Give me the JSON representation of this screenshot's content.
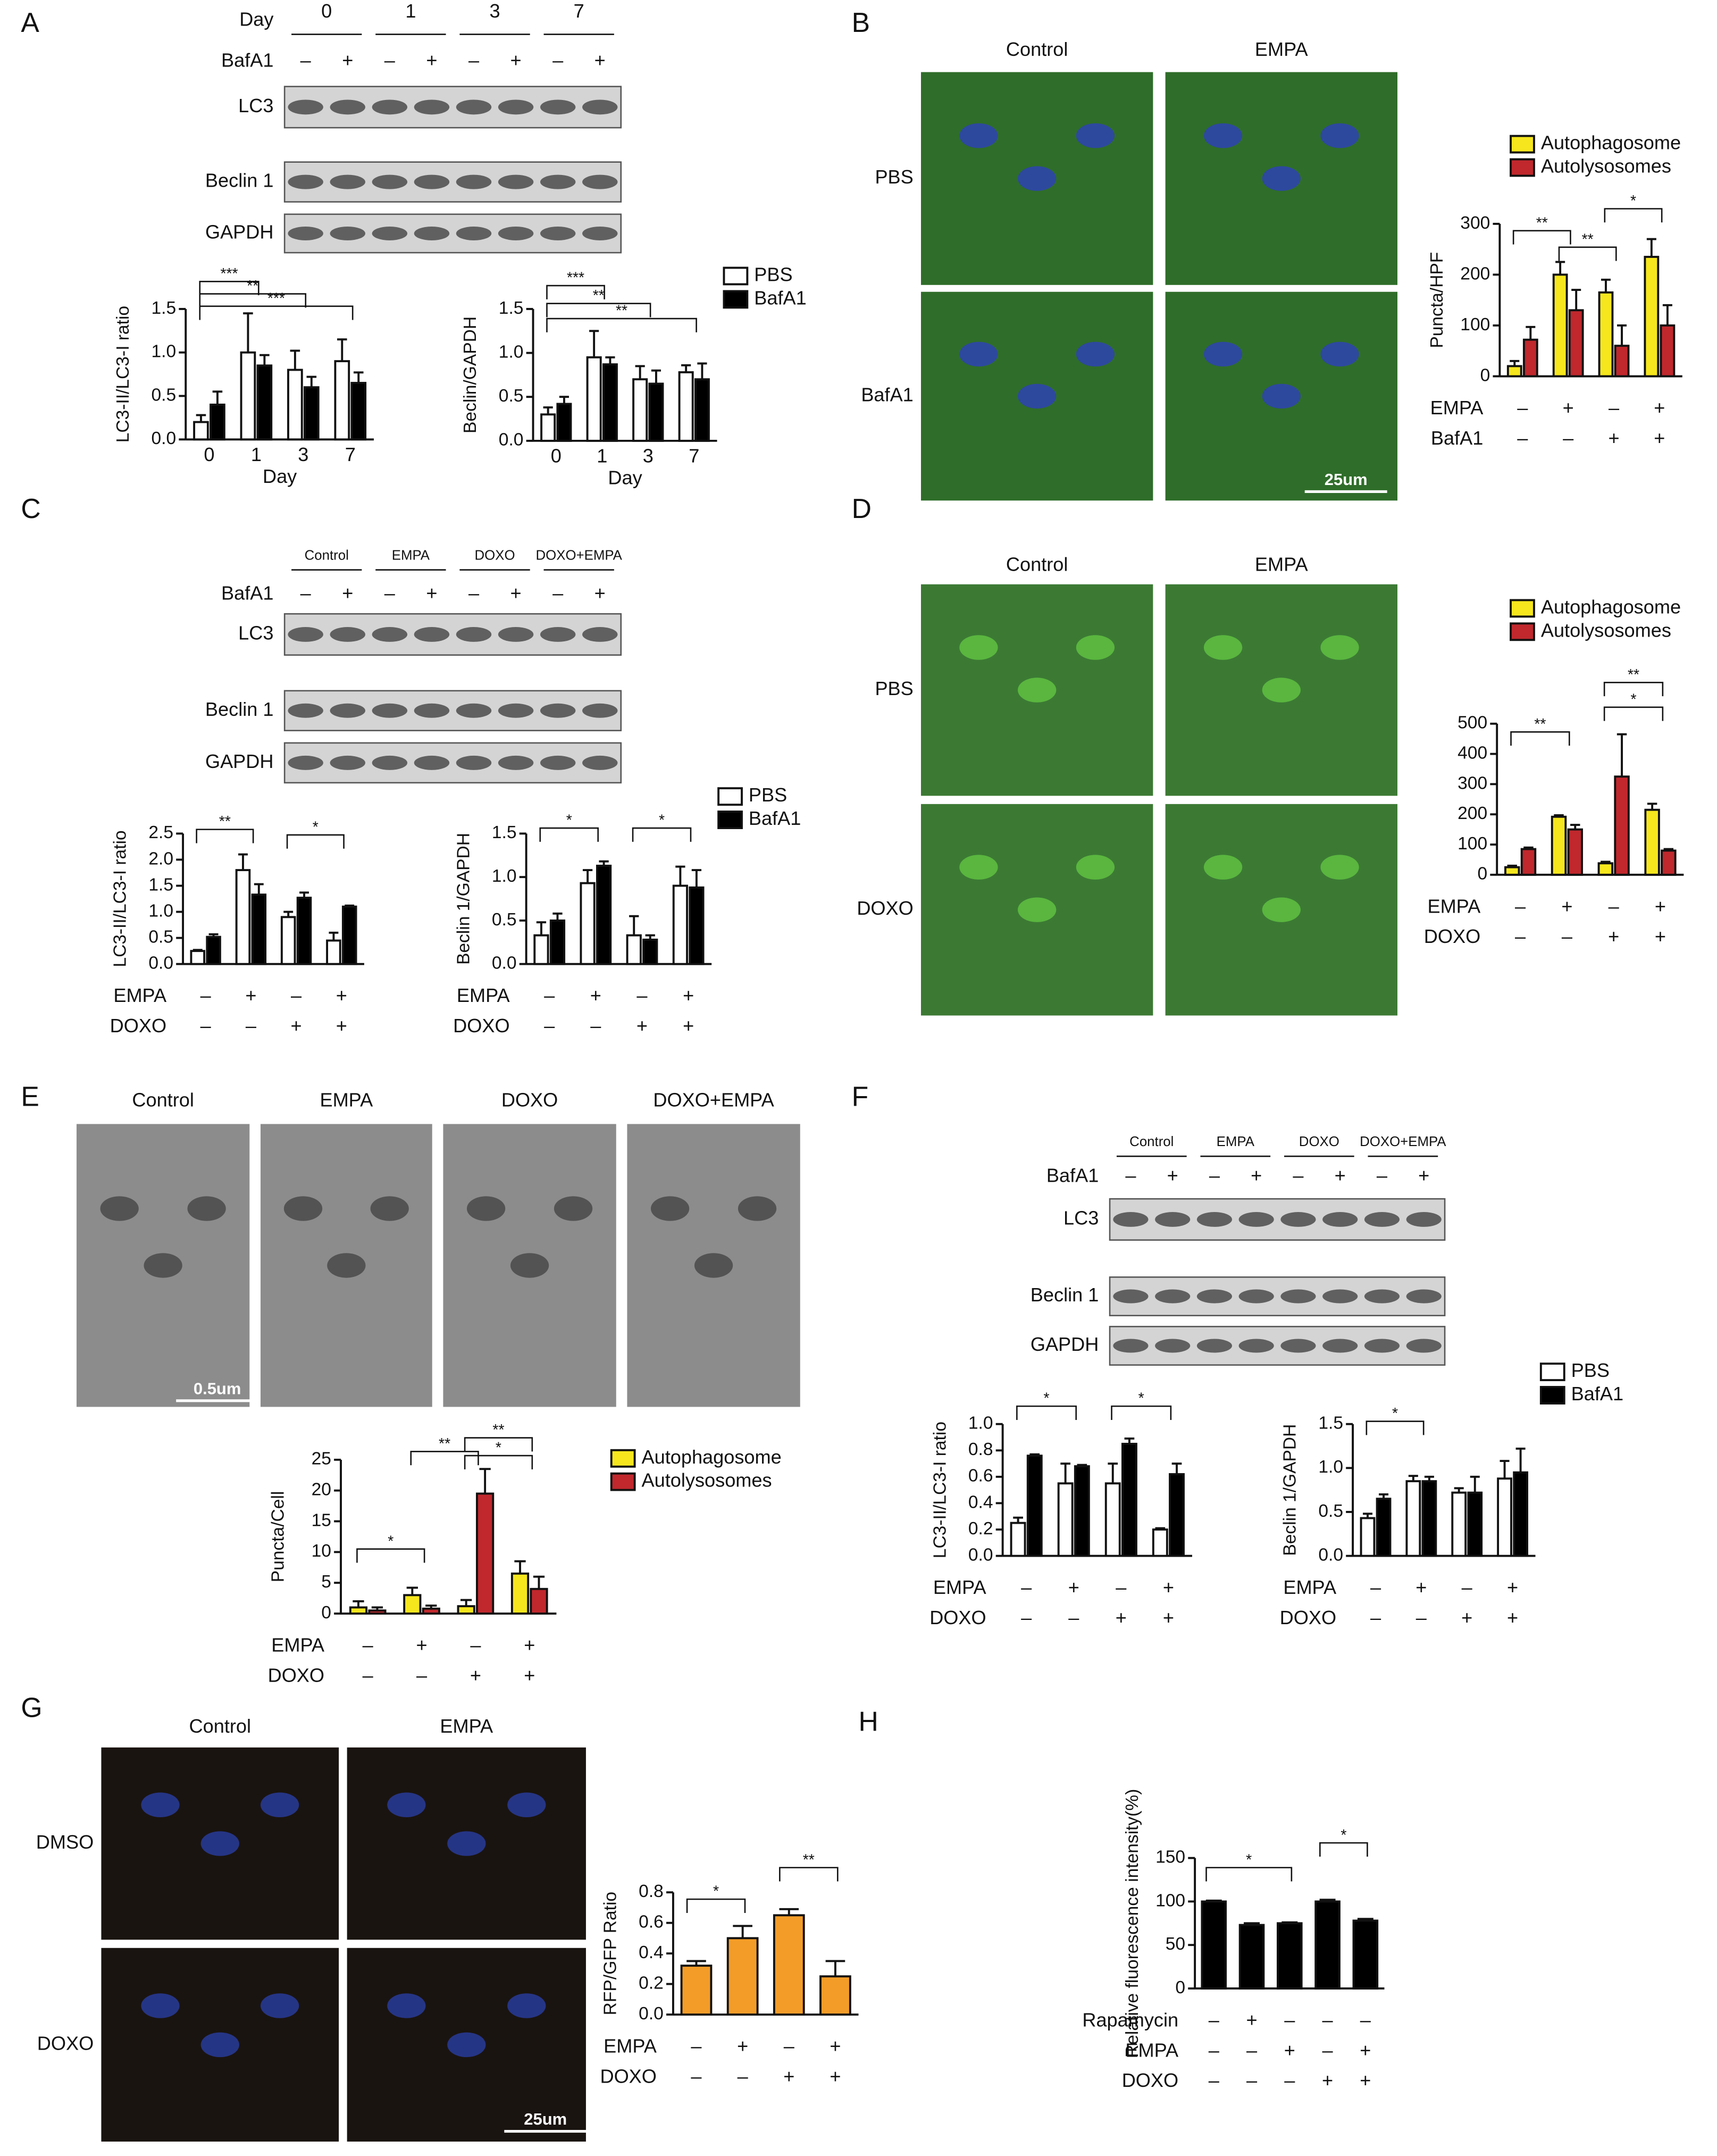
{
  "panel_labels": [
    "A",
    "B",
    "C",
    "D",
    "E",
    "F",
    "G",
    "H"
  ],
  "blot_A": {
    "day_label": "Day",
    "days": [
      "0",
      "1",
      "3",
      "7"
    ],
    "bafa1_label": "BafA1",
    "signs": [
      "–",
      "+",
      "–",
      "+",
      "–",
      "+",
      "–",
      "+"
    ],
    "rows": [
      "LC3",
      "Beclin 1",
      "GAPDH"
    ]
  },
  "blot_C": {
    "groups": [
      "Control",
      "EMPA",
      "DOXO",
      "DOXO+EMPA"
    ],
    "bafa1_label": "BafA1",
    "signs": [
      "–",
      "+",
      "–",
      "+",
      "–",
      "+",
      "–",
      "+"
    ],
    "rows": [
      "LC3",
      "Beclin 1",
      "GAPDH"
    ]
  },
  "blot_F": {
    "groups": [
      "Control",
      "EMPA",
      "DOXO",
      "DOXO+EMPA"
    ],
    "bafa1_label": "BafA1",
    "signs": [
      "–",
      "+",
      "–",
      "+",
      "–",
      "+",
      "–",
      "+"
    ],
    "rows": [
      "LC3",
      "Beclin 1",
      "GAPDH"
    ]
  },
  "images_B": {
    "columns": [
      "Control",
      "EMPA"
    ],
    "rows": [
      "PBS",
      "BafA1"
    ],
    "scale_bar": "25um"
  },
  "images_D": {
    "columns": [
      "Control",
      "EMPA"
    ],
    "rows": [
      "PBS",
      "DOXO"
    ]
  },
  "images_E": {
    "columns": [
      "Control",
      "EMPA",
      "DOXO",
      "DOXO+EMPA"
    ],
    "scale_bar": "0.5um"
  },
  "images_G": {
    "columns": [
      "Control",
      "EMPA"
    ],
    "rows": [
      "DMSO",
      "DOXO"
    ],
    "scale_bar": "25um"
  },
  "chart_data": [
    {
      "type": "bar",
      "y_label": "LC3-II/LC3-I ratio",
      "x_label": "Day",
      "categories": [
        "0",
        "1",
        "3",
        "7"
      ],
      "series": [
        {
          "name": "PBS",
          "color": "#ffffff",
          "values": [
            0.2,
            1.0,
            0.8,
            0.9
          ],
          "errors": [
            0.08,
            0.45,
            0.22,
            0.25
          ]
        },
        {
          "name": "BafA1",
          "color": "#000000",
          "values": [
            0.4,
            0.85,
            0.6,
            0.65
          ],
          "errors": [
            0.15,
            0.12,
            0.12,
            0.12
          ]
        }
      ],
      "ylim": [
        0,
        1.5
      ],
      "yticks": [
        {
          "value": 0,
          "label": "0.0"
        },
        0.5,
        {
          "value": 1,
          "label": "1.0"
        },
        1.5
      ],
      "annotations": [
        "***",
        "**",
        "***"
      ]
    },
    {
      "type": "bar",
      "y_label": "Beclin/GAPDH",
      "x_label": "Day",
      "categories": [
        "0",
        "1",
        "3",
        "7"
      ],
      "series": [
        {
          "name": "PBS",
          "color": "#ffffff",
          "values": [
            0.3,
            0.95,
            0.7,
            0.78
          ],
          "errors": [
            0.08,
            0.3,
            0.15,
            0.08
          ]
        },
        {
          "name": "BafA1",
          "color": "#000000",
          "values": [
            0.42,
            0.87,
            0.65,
            0.7
          ],
          "errors": [
            0.08,
            0.08,
            0.15,
            0.18
          ]
        }
      ],
      "ylim": [
        0,
        1.5
      ],
      "yticks": [
        {
          "value": 0,
          "label": "0.0"
        },
        0.5,
        {
          "value": 1,
          "label": "1.0"
        },
        1.5
      ],
      "annotations": [
        "***",
        "**",
        "**"
      ],
      "legend": true
    },
    {
      "type": "bar",
      "y_label": "Puncta/HPF",
      "categories": [
        null,
        null,
        null,
        null
      ],
      "series": [
        {
          "name": "Autophagosome",
          "color": "#f5e61e",
          "values": [
            20,
            200,
            165,
            235
          ],
          "errors": [
            10,
            25,
            25,
            35
          ]
        },
        {
          "name": "Autolysosomes",
          "color": "#c0282d",
          "values": [
            72,
            130,
            60,
            100
          ],
          "errors": [
            25,
            40,
            40,
            40
          ]
        }
      ],
      "ylim": [
        0,
        300
      ],
      "yticks": [
        0,
        100,
        200,
        300
      ],
      "conditions": [
        {
          "name": "EMPA",
          "signs": [
            "–",
            "+",
            "–",
            "+"
          ]
        },
        {
          "name": "BafA1",
          "signs": [
            "–",
            "–",
            "+",
            "+"
          ]
        }
      ],
      "annotations": [
        "**",
        "**",
        "*"
      ],
      "legend": true
    },
    {
      "type": "bar",
      "y_label": "LC3-II/LC3-I ratio",
      "categories": [
        null,
        null,
        null,
        null
      ],
      "series": [
        {
          "name": "PBS",
          "color": "#ffffff",
          "values": [
            0.25,
            1.8,
            0.9,
            0.45
          ],
          "errors": [
            0.02,
            0.3,
            0.1,
            0.15
          ]
        },
        {
          "name": "BafA1",
          "color": "#000000",
          "values": [
            0.52,
            1.33,
            1.27,
            1.1
          ],
          "errors": [
            0.05,
            0.2,
            0.1,
            0.02
          ]
        }
      ],
      "ylim": [
        0,
        2.5
      ],
      "yticks": [
        {
          "value": 0,
          "label": "0.0"
        },
        0.5,
        {
          "value": 1,
          "label": "1.0"
        },
        1.5,
        {
          "value": 2,
          "label": "2.0"
        },
        2.5
      ],
      "conditions": [
        {
          "name": "EMPA",
          "signs": [
            "–",
            "+",
            "–",
            "+"
          ]
        },
        {
          "name": "DOXO",
          "signs": [
            "–",
            "–",
            "+",
            "+"
          ]
        }
      ],
      "annotations": [
        "**",
        "*"
      ]
    },
    {
      "type": "bar",
      "y_label": "Beclin 1/GAPDH",
      "categories": [
        null,
        null,
        null,
        null
      ],
      "series": [
        {
          "name": "PBS",
          "color": "#ffffff",
          "values": [
            0.33,
            0.93,
            0.33,
            0.9
          ],
          "errors": [
            0.15,
            0.15,
            0.22,
            0.22
          ]
        },
        {
          "name": "BafA1",
          "color": "#000000",
          "values": [
            0.5,
            1.13,
            0.28,
            0.88
          ],
          "errors": [
            0.08,
            0.05,
            0.05,
            0.2
          ]
        }
      ],
      "ylim": [
        0,
        1.5
      ],
      "yticks": [
        {
          "value": 0,
          "label": "0.0"
        },
        0.5,
        {
          "value": 1,
          "label": "1.0"
        },
        1.5
      ],
      "conditions": [
        {
          "name": "EMPA",
          "signs": [
            "–",
            "+",
            "–",
            "+"
          ]
        },
        {
          "name": "DOXO",
          "signs": [
            "–",
            "–",
            "+",
            "+"
          ]
        }
      ],
      "annotations": [
        "*",
        "*"
      ],
      "legend": true
    },
    {
      "type": "bar",
      "categories": [
        null,
        null,
        null,
        null
      ],
      "series": [
        {
          "name": "Autophagosome",
          "color": "#f5e61e",
          "values": [
            25,
            192,
            38,
            215
          ],
          "errors": [
            5,
            5,
            5,
            20
          ]
        },
        {
          "name": "Autolysosomes",
          "color": "#c0282d",
          "values": [
            85,
            150,
            325,
            80
          ],
          "errors": [
            5,
            15,
            140,
            5
          ]
        }
      ],
      "ylim": [
        0,
        500
      ],
      "yticks": [
        0,
        100,
        200,
        300,
        400,
        500
      ],
      "conditions": [
        {
          "name": "EMPA",
          "signs": [
            "–",
            "+",
            "–",
            "+"
          ]
        },
        {
          "name": "DOXO",
          "signs": [
            "–",
            "–",
            "+",
            "+"
          ]
        }
      ],
      "annotations": [
        "**",
        "*",
        "**"
      ],
      "legend": true
    },
    {
      "type": "bar",
      "y_label": "Puncta/Cell",
      "categories": [
        null,
        null,
        null,
        null
      ],
      "series": [
        {
          "name": "Autophagosome",
          "color": "#f5e61e",
          "values": [
            1,
            3,
            1.2,
            6.5
          ],
          "errors": [
            1,
            1.2,
            1,
            2
          ]
        },
        {
          "name": "Autolysosomes",
          "color": "#c0282d",
          "values": [
            0.5,
            0.8,
            19.5,
            4
          ],
          "errors": [
            0.5,
            0.5,
            4,
            2
          ]
        }
      ],
      "ylim": [
        0,
        25
      ],
      "yticks": [
        0,
        5,
        10,
        15,
        20,
        25
      ],
      "conditions": [
        {
          "name": "EMPA",
          "signs": [
            "–",
            "+",
            "–",
            "+"
          ]
        },
        {
          "name": "DOXO",
          "signs": [
            "–",
            "–",
            "+",
            "+"
          ]
        }
      ],
      "annotations": [
        "*",
        "**",
        "**",
        "*"
      ],
      "legend": true
    },
    {
      "type": "bar",
      "y_label": "LC3-II/LC3-I ratio",
      "categories": [
        null,
        null,
        null,
        null
      ],
      "series": [
        {
          "name": "PBS",
          "color": "#ffffff",
          "values": [
            0.25,
            0.55,
            0.55,
            0.2
          ],
          "errors": [
            0.04,
            0.15,
            0.15,
            0.01
          ]
        },
        {
          "name": "BafA1",
          "color": "#000000",
          "values": [
            0.76,
            0.68,
            0.85,
            0.62
          ],
          "errors": [
            0.01,
            0.01,
            0.04,
            0.08
          ]
        }
      ],
      "ylim": [
        0,
        1
      ],
      "yticks": [
        {
          "value": 0,
          "label": "0.0"
        },
        0.2,
        0.4,
        0.6,
        0.8,
        {
          "value": 1,
          "label": "1.0"
        }
      ],
      "conditions": [
        {
          "name": "EMPA",
          "signs": [
            "–",
            "+",
            "–",
            "+"
          ]
        },
        {
          "name": "DOXO",
          "signs": [
            "–",
            "–",
            "+",
            "+"
          ]
        }
      ],
      "annotations": [
        "*",
        "*"
      ]
    },
    {
      "type": "bar",
      "y_label": "Beclin 1/GAPDH",
      "categories": [
        null,
        null,
        null,
        null
      ],
      "series": [
        {
          "name": "PBS",
          "color": "#ffffff",
          "values": [
            0.43,
            0.85,
            0.72,
            0.88
          ],
          "errors": [
            0.05,
            0.06,
            0.05,
            0.2
          ]
        },
        {
          "name": "BafA1",
          "color": "#000000",
          "values": [
            0.65,
            0.85,
            0.72,
            0.95
          ],
          "errors": [
            0.05,
            0.05,
            0.18,
            0.27
          ]
        }
      ],
      "ylim": [
        0,
        1.5
      ],
      "yticks": [
        {
          "value": 0,
          "label": "0.0"
        },
        0.5,
        {
          "value": 1,
          "label": "1.0"
        },
        1.5
      ],
      "conditions": [
        {
          "name": "EMPA",
          "signs": [
            "–",
            "+",
            "–",
            "+"
          ]
        },
        {
          "name": "DOXO",
          "signs": [
            "–",
            "–",
            "+",
            "+"
          ]
        }
      ],
      "annotations": [
        "*"
      ],
      "legend": true
    },
    {
      "type": "bar",
      "y_label": "RFP/GFP Ratio",
      "categories": [
        null,
        null,
        null,
        null
      ],
      "color": "#f39c28",
      "values": [
        0.32,
        0.5,
        0.65,
        0.25
      ],
      "errors": [
        0.03,
        0.08,
        0.04,
        0.1
      ],
      "ylim": [
        0,
        0.8
      ],
      "yticks": [
        {
          "value": 0,
          "label": "0.0"
        },
        0.2,
        0.4,
        0.6,
        0.8
      ],
      "conditions": [
        {
          "name": "EMPA",
          "signs": [
            "–",
            "+",
            "–",
            "+"
          ]
        },
        {
          "name": "DOXO",
          "signs": [
            "–",
            "–",
            "+",
            "+"
          ]
        }
      ],
      "annotations": [
        "*",
        "**"
      ]
    },
    {
      "type": "bar",
      "y_label": "Relative fluorescence intensity(%)",
      "categories": [
        null,
        null,
        null,
        null,
        null
      ],
      "color": "#000000",
      "values": [
        100,
        73,
        75,
        100,
        78
      ],
      "errors": [
        1,
        2,
        1,
        2,
        2
      ],
      "ylim": [
        0,
        150
      ],
      "yticks": [
        0,
        50,
        100,
        150
      ],
      "conditions": [
        {
          "name": "Rapamycin",
          "signs": [
            "–",
            "+",
            "–",
            "–",
            "–"
          ]
        },
        {
          "name": "EMPA",
          "signs": [
            "–",
            "–",
            "+",
            "–",
            "+"
          ]
        },
        {
          "name": "DOXO",
          "signs": [
            "–",
            "–",
            "–",
            "+",
            "+"
          ]
        }
      ],
      "annotations": [
        "*",
        "*"
      ]
    }
  ]
}
